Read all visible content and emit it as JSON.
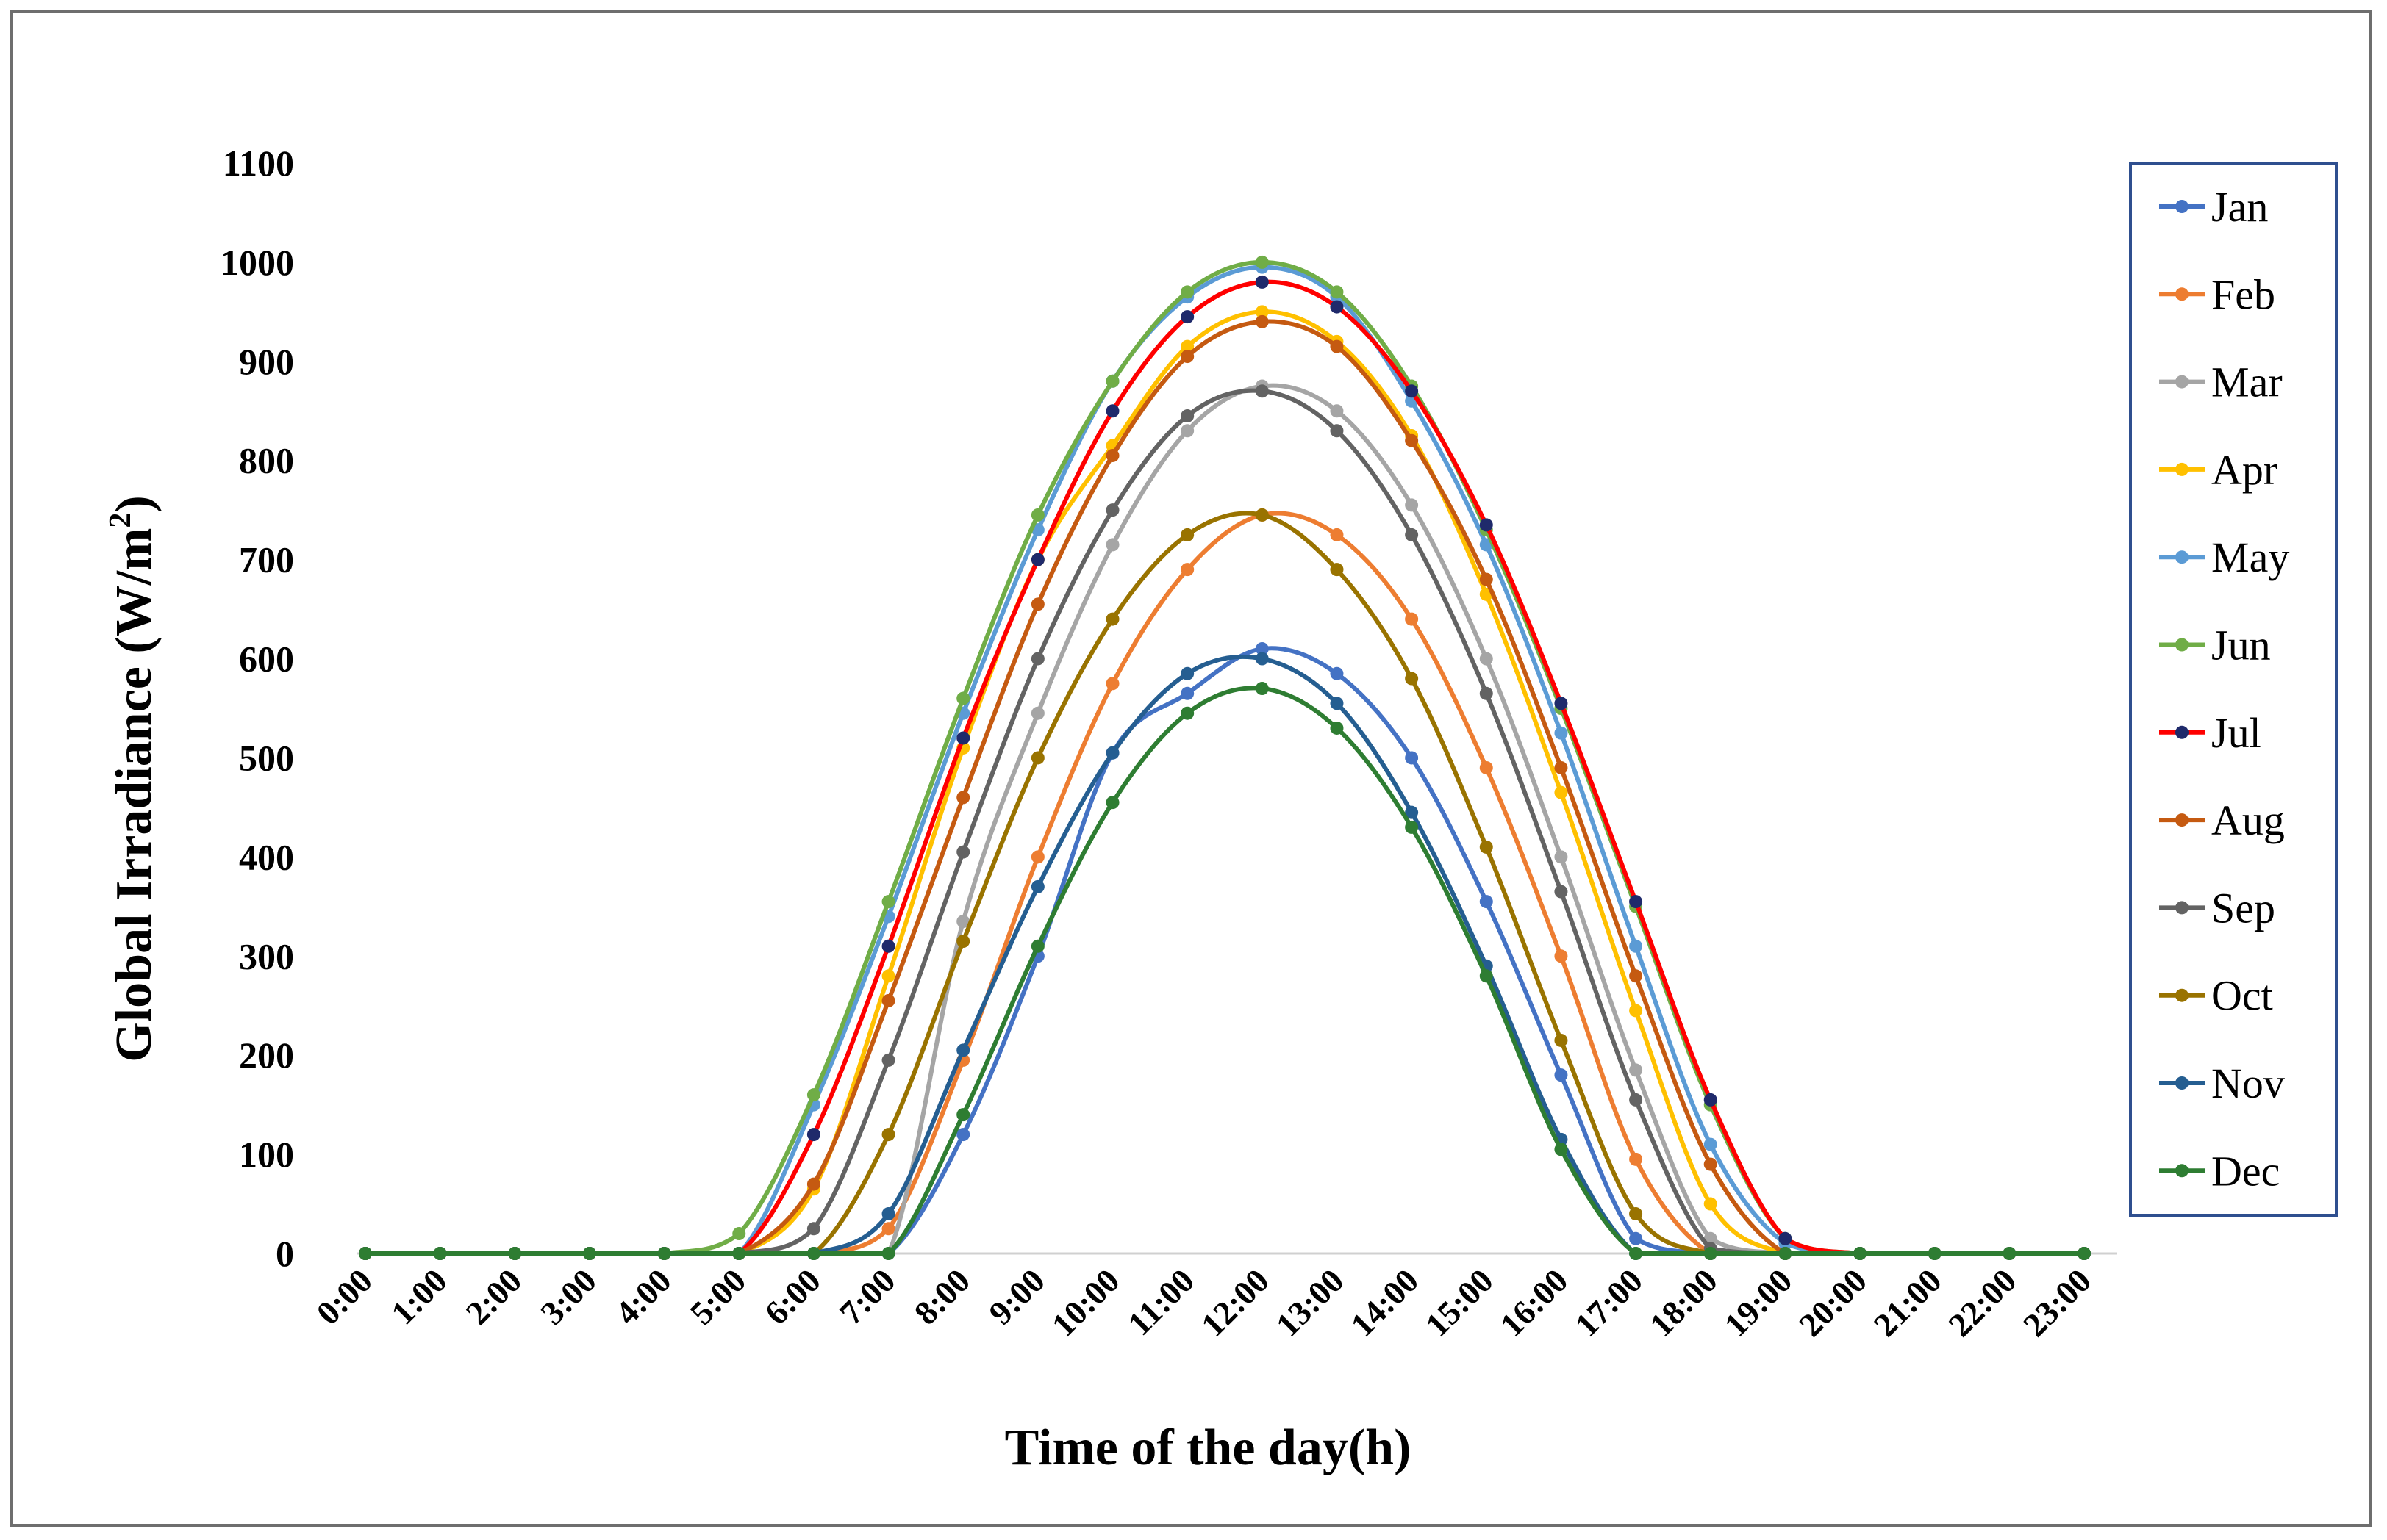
{
  "chart_data": {
    "type": "line",
    "title": "",
    "xlabel": "Time of the day(h)",
    "ylabel_main": "Global Irradiance (W/m",
    "ylabel_sup": "2",
    "ylabel_close": ")",
    "ylim": [
      0,
      1100
    ],
    "y_ticks": [
      0,
      100,
      200,
      300,
      400,
      500,
      600,
      700,
      800,
      900,
      1000,
      1100
    ],
    "categories": [
      "0:00",
      "1:00",
      "2:00",
      "3:00",
      "4:00",
      "5:00",
      "6:00",
      "7:00",
      "8:00",
      "9:00",
      "10:00",
      "11:00",
      "12:00",
      "13:00",
      "14:00",
      "15:00",
      "16:00",
      "17:00",
      "18:00",
      "19:00",
      "20:00",
      "21:00",
      "22:00",
      "23:00"
    ],
    "grid": false,
    "legend_position": "right",
    "series": [
      {
        "name": "Jan",
        "color": "#4472C4",
        "values": [
          0,
          0,
          0,
          0,
          0,
          0,
          0,
          0,
          120,
          300,
          505,
          565,
          610,
          585,
          500,
          355,
          180,
          15,
          0,
          0,
          0,
          0,
          0,
          0
        ]
      },
      {
        "name": "Feb",
        "color": "#ED7D31",
        "values": [
          0,
          0,
          0,
          0,
          0,
          0,
          0,
          25,
          195,
          400,
          575,
          690,
          745,
          725,
          640,
          490,
          300,
          95,
          0,
          0,
          0,
          0,
          0,
          0
        ]
      },
      {
        "name": "Mar",
        "color": "#A5A5A5",
        "values": [
          0,
          0,
          0,
          0,
          0,
          0,
          0,
          0,
          335,
          545,
          715,
          830,
          875,
          850,
          755,
          600,
          400,
          185,
          15,
          0,
          0,
          0,
          0,
          0
        ]
      },
      {
        "name": "Apr",
        "color": "#FFC000",
        "values": [
          0,
          0,
          0,
          0,
          0,
          0,
          65,
          280,
          510,
          700,
          815,
          915,
          950,
          920,
          825,
          665,
          465,
          245,
          50,
          0,
          0,
          0,
          0,
          0
        ]
      },
      {
        "name": "May",
        "color": "#5B9BD5",
        "values": [
          0,
          0,
          0,
          0,
          0,
          0,
          150,
          340,
          545,
          730,
          880,
          965,
          995,
          965,
          860,
          715,
          525,
          310,
          110,
          10,
          0,
          0,
          0,
          0
        ]
      },
      {
        "name": "Jun",
        "color": "#70AD47",
        "values": [
          0,
          0,
          0,
          0,
          0,
          20,
          160,
          355,
          560,
          745,
          880,
          970,
          1000,
          970,
          875,
          730,
          550,
          350,
          150,
          15,
          0,
          0,
          0,
          0
        ]
      },
      {
        "name": "Jul",
        "color": "#FF0000",
        "marker": "#1F2A6B",
        "values": [
          0,
          0,
          0,
          0,
          0,
          0,
          120,
          310,
          520,
          700,
          850,
          945,
          980,
          955,
          870,
          735,
          555,
          355,
          155,
          15,
          0,
          0,
          0,
          0
        ]
      },
      {
        "name": "Aug",
        "color": "#C55A11",
        "values": [
          0,
          0,
          0,
          0,
          0,
          0,
          70,
          255,
          460,
          655,
          805,
          905,
          940,
          915,
          820,
          680,
          490,
          280,
          90,
          0,
          0,
          0,
          0,
          0
        ]
      },
      {
        "name": "Sep",
        "color": "#636363",
        "values": [
          0,
          0,
          0,
          0,
          0,
          0,
          25,
          195,
          405,
          600,
          750,
          845,
          870,
          830,
          725,
          565,
          365,
          155,
          5,
          0,
          0,
          0,
          0,
          0
        ]
      },
      {
        "name": "Oct",
        "color": "#997300",
        "values": [
          0,
          0,
          0,
          0,
          0,
          0,
          0,
          120,
          315,
          500,
          640,
          725,
          745,
          690,
          580,
          410,
          215,
          40,
          0,
          0,
          0,
          0,
          0,
          0
        ]
      },
      {
        "name": "Nov",
        "color": "#255E91",
        "values": [
          0,
          0,
          0,
          0,
          0,
          0,
          0,
          40,
          205,
          370,
          505,
          585,
          600,
          555,
          445,
          290,
          115,
          0,
          0,
          0,
          0,
          0,
          0,
          0
        ]
      },
      {
        "name": "Dec",
        "color": "#2E7D32",
        "values": [
          0,
          0,
          0,
          0,
          0,
          0,
          0,
          0,
          140,
          310,
          455,
          545,
          570,
          530,
          430,
          280,
          105,
          0,
          0,
          0,
          0,
          0,
          0,
          0
        ]
      }
    ]
  }
}
